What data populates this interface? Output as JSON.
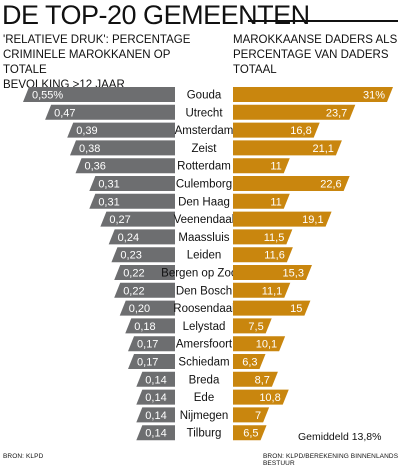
{
  "header": {
    "title": "DE TOP-20 GEMEENTEN",
    "left_subtitle": "'Relatieve druk': percentage\ncriminele Marokkanen op totale\nbevolking  >12 jaar",
    "right_subtitle": "Marokkaanse daders als\npercentage van daders totaal"
  },
  "footer": {
    "source_left": "Bron: KLPD",
    "source_right": "Bron: KLPD/berekening Binnenlands Bestuur",
    "average_label": "Gemiddeld 13,8%"
  },
  "colors": {
    "left_bar": "#6d6e70",
    "right_bar": "#c9860e",
    "label_text": "#ffffff"
  },
  "chart_data": {
    "type": "bar",
    "title": "DE TOP-20 GEMEENTEN",
    "categories": [
      "Gouda",
      "Utrecht",
      "Amsterdam",
      "Zeist",
      "Rotterdam",
      "Culemborg",
      "Den Haag",
      "Veenendaal",
      "Maassluis",
      "Leiden",
      "Bergen op Zoom",
      "Den Bosch",
      "Roosendaal",
      "Lelystad",
      "Amersfoort",
      "Schiedam",
      "Breda",
      "Ede",
      "Nijmegen",
      "Tilburg"
    ],
    "series": [
      {
        "values": [
          0.55,
          0.47,
          0.39,
          0.38,
          0.36,
          0.31,
          0.31,
          0.27,
          0.24,
          0.23,
          0.22,
          0.22,
          0.2,
          0.18,
          0.17,
          0.17,
          0.14,
          0.14,
          0.14,
          0.14
        ],
        "labels": [
          "0,55%",
          "0,47",
          "0,39",
          "0,38",
          "0,36",
          "0,31",
          "0,31",
          "0,27",
          "0,24",
          "0,23",
          "0,22",
          "0,22",
          "0,20",
          "0,18",
          "0,17",
          "0,17",
          "0,14",
          "0,14",
          "0,14",
          "0,14"
        ]
      },
      {
        "values": [
          31,
          23.7,
          16.8,
          21.1,
          11,
          22.6,
          11,
          19.1,
          11.5,
          11.6,
          15.3,
          11.1,
          15,
          7.5,
          10.1,
          6.3,
          8.7,
          10.8,
          7,
          6.5
        ],
        "labels": [
          "31%",
          "23,7",
          "16,8",
          "21,1",
          "11",
          "22,6",
          "11",
          "19,1",
          "11,5",
          "11,6",
          "15,3",
          "11,1",
          "15",
          "7,5",
          "10,1",
          "6,3",
          "8,7",
          "10,8",
          "7",
          "6,5"
        ]
      }
    ]
  }
}
